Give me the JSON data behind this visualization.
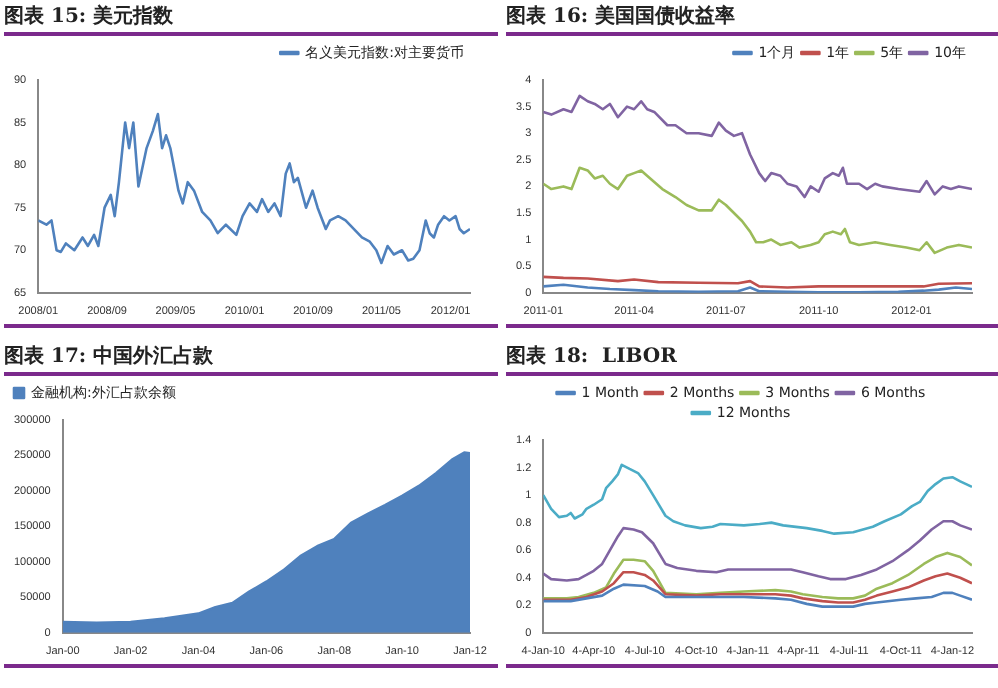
{
  "chart_data": [
    {
      "type": "line",
      "title": "图表 15: 美元指数",
      "legend": "top right",
      "marker": "none",
      "xlim": [
        "2008-01-01",
        "2012-03-10"
      ],
      "xticks": [
        {
          "value": "2008-01-01",
          "label": "2008/01"
        },
        {
          "value": "2008-09-01",
          "label": "2008/09"
        },
        {
          "value": "2009-05-01",
          "label": "2009/05"
        },
        {
          "value": "2010-01-01",
          "label": "2010/01"
        },
        {
          "value": "2010-09-01",
          "label": "2010/09"
        },
        {
          "value": "2011-05-01",
          "label": "2011/05"
        },
        {
          "value": "2012-01-01",
          "label": "2012/01"
        }
      ],
      "ylim": [
        65,
        90
      ],
      "yticks": [
        65,
        70,
        75,
        80,
        85,
        90
      ],
      "series": [
        {
          "name": "名义美元指数:对主要货币",
          "color": "#4f81bd",
          "x": [
            "2008-01-01",
            "2008-01-30",
            "2008-02-17",
            "2008-03-06",
            "2008-03-21",
            "2008-04-08",
            "2008-05-08",
            "2008-06-06",
            "2008-06-25",
            "2008-07-17",
            "2008-08-01",
            "2008-08-23",
            "2008-09-14",
            "2008-09-28",
            "2008-10-13",
            "2008-11-04",
            "2008-11-18",
            "2008-12-03",
            "2008-12-21",
            "2009-01-19",
            "2009-02-10",
            "2009-02-28",
            "2009-03-15",
            "2009-03-29",
            "2009-04-13",
            "2009-05-12",
            "2009-05-27",
            "2009-06-14",
            "2009-07-06",
            "2009-08-04",
            "2009-09-02",
            "2009-09-28",
            "2009-10-27",
            "2009-12-03",
            "2009-12-25",
            "2010-01-19",
            "2010-02-14",
            "2010-03-04",
            "2010-03-26",
            "2010-04-17",
            "2010-05-09",
            "2010-05-27",
            "2010-06-10",
            "2010-06-25",
            "2010-07-09",
            "2010-08-07",
            "2010-08-30",
            "2010-09-17",
            "2010-10-16",
            "2010-10-31",
            "2010-11-29",
            "2010-12-25",
            "2011-01-23",
            "2011-02-21",
            "2011-03-21",
            "2011-04-13",
            "2011-05-01",
            "2011-05-23",
            "2011-06-14",
            "2011-07-13",
            "2011-08-04",
            "2011-08-22",
            "2011-09-13",
            "2011-10-05",
            "2011-10-19",
            "2011-11-03",
            "2011-11-18",
            "2011-12-09",
            "2011-12-28",
            "2012-01-19",
            "2012-02-02",
            "2012-02-17",
            "2012-03-10"
          ],
          "values": [
            73.5,
            73,
            73.5,
            70,
            69.8,
            70.8,
            70,
            71.5,
            70.5,
            71.8,
            70.5,
            75,
            76.5,
            74,
            78,
            85,
            82,
            85,
            77.5,
            82,
            84,
            86,
            82,
            83.5,
            82,
            77,
            75.5,
            78,
            77,
            74.5,
            73.5,
            72,
            73,
            71.8,
            74,
            75.5,
            74.5,
            76,
            74.5,
            75.5,
            74,
            79,
            80.2,
            78,
            78.5,
            75,
            77,
            75,
            72.5,
            73.5,
            74,
            73.5,
            72.5,
            71.5,
            71,
            70,
            68.5,
            70.5,
            69.5,
            70,
            68.8,
            69,
            70,
            73.5,
            72,
            71.5,
            73,
            74,
            73.5,
            74,
            72.5,
            72,
            72.5
          ]
        }
      ]
    },
    {
      "type": "line",
      "title": "图表 16: 美国国债收益率",
      "legend": "top right",
      "marker": "none",
      "xlim": [
        "2011-01-01",
        "2012-03-01"
      ],
      "xticks": [
        {
          "value": "2011-01-01",
          "label": "2011-01"
        },
        {
          "value": "2011-04-01",
          "label": "2011-04"
        },
        {
          "value": "2011-07-01",
          "label": "2011-07"
        },
        {
          "value": "2011-10-01",
          "label": "2011-10"
        },
        {
          "value": "2012-01-01",
          "label": "2012-01"
        }
      ],
      "ylim": [
        0,
        4
      ],
      "yticks": [
        0,
        0.5,
        1,
        1.5,
        2,
        2.5,
        3,
        3.5,
        4
      ],
      "series": [
        {
          "name": "1个月",
          "color": "#4f81bd",
          "x": [
            "2011-01-01",
            "2011-01-21",
            "2011-02-14",
            "2011-03-08",
            "2011-04-01",
            "2011-04-25",
            "2011-06-04",
            "2011-07-13",
            "2011-07-25",
            "2011-08-03",
            "2011-08-31",
            "2011-10-01",
            "2011-11-10",
            "2011-12-19",
            "2012-01-13",
            "2012-01-28",
            "2012-02-14",
            "2012-03-01"
          ],
          "values": [
            0.12,
            0.15,
            0.1,
            0.07,
            0.05,
            0.03,
            0.02,
            0.03,
            0.1,
            0.03,
            0.02,
            0.01,
            0.01,
            0.02,
            0.04,
            0.06,
            0.1,
            0.07
          ]
        },
        {
          "name": "1年",
          "color": "#c0504d",
          "x": [
            "2011-01-01",
            "2011-01-21",
            "2011-02-14",
            "2011-03-16",
            "2011-04-01",
            "2011-04-25",
            "2011-06-04",
            "2011-07-13",
            "2011-07-25",
            "2011-08-03",
            "2011-08-31",
            "2011-10-01",
            "2011-11-10",
            "2011-12-19",
            "2012-01-13",
            "2012-01-28",
            "2012-03-01"
          ],
          "values": [
            0.3,
            0.28,
            0.27,
            0.22,
            0.25,
            0.2,
            0.19,
            0.18,
            0.22,
            0.12,
            0.1,
            0.12,
            0.12,
            0.12,
            0.12,
            0.17,
            0.18
          ]
        },
        {
          "name": "5年",
          "color": "#9bbb59",
          "x": [
            "2011-01-01",
            "2011-01-09",
            "2011-01-21",
            "2011-01-29",
            "2011-02-06",
            "2011-02-14",
            "2011-02-21",
            "2011-03-01",
            "2011-03-08",
            "2011-03-16",
            "2011-03-25",
            "2011-04-01",
            "2011-04-08",
            "2011-04-17",
            "2011-04-29",
            "2011-05-12",
            "2011-05-23",
            "2011-06-04",
            "2011-06-17",
            "2011-06-24",
            "2011-07-01",
            "2011-07-09",
            "2011-07-17",
            "2011-07-25",
            "2011-07-31",
            "2011-08-07",
            "2011-08-15",
            "2011-08-24",
            "2011-09-04",
            "2011-09-12",
            "2011-09-23",
            "2011-10-01",
            "2011-10-07",
            "2011-10-15",
            "2011-10-23",
            "2011-10-27",
            "2011-11-01",
            "2011-11-10",
            "2011-11-26",
            "2011-12-11",
            "2011-12-27",
            "2012-01-09",
            "2012-01-16",
            "2012-01-24",
            "2012-02-05",
            "2012-02-17",
            "2012-03-01"
          ],
          "values": [
            2.05,
            1.95,
            2.0,
            1.95,
            2.35,
            2.3,
            2.15,
            2.2,
            2.05,
            1.95,
            2.2,
            2.25,
            2.3,
            2.15,
            1.95,
            1.8,
            1.65,
            1.55,
            1.55,
            1.75,
            1.65,
            1.5,
            1.35,
            1.15,
            0.95,
            0.95,
            1.0,
            0.9,
            0.95,
            0.85,
            0.9,
            0.95,
            1.1,
            1.15,
            1.1,
            1.2,
            0.95,
            0.9,
            0.95,
            0.9,
            0.85,
            0.8,
            0.95,
            0.75,
            0.85,
            0.9,
            0.85
          ]
        },
        {
          "name": "10年",
          "color": "#8064a2",
          "x": [
            "2011-01-01",
            "2011-01-09",
            "2011-01-21",
            "2011-01-29",
            "2011-02-06",
            "2011-02-14",
            "2011-02-21",
            "2011-03-01",
            "2011-03-08",
            "2011-03-16",
            "2011-03-25",
            "2011-04-01",
            "2011-04-08",
            "2011-04-14",
            "2011-04-21",
            "2011-05-04",
            "2011-05-12",
            "2011-05-23",
            "2011-06-04",
            "2011-06-17",
            "2011-06-24",
            "2011-07-01",
            "2011-07-09",
            "2011-07-17",
            "2011-07-25",
            "2011-08-03",
            "2011-08-09",
            "2011-08-15",
            "2011-08-24",
            "2011-08-31",
            "2011-09-09",
            "2011-09-17",
            "2011-09-23",
            "2011-10-01",
            "2011-10-07",
            "2011-10-15",
            "2011-10-21",
            "2011-10-25",
            "2011-10-29",
            "2011-11-10",
            "2011-11-18",
            "2011-11-26",
            "2011-12-03",
            "2011-12-19",
            "2012-01-09",
            "2012-01-16",
            "2012-01-24",
            "2012-02-01",
            "2012-02-09",
            "2012-02-17",
            "2012-03-01"
          ],
          "values": [
            3.4,
            3.35,
            3.45,
            3.4,
            3.7,
            3.6,
            3.55,
            3.45,
            3.55,
            3.3,
            3.5,
            3.45,
            3.6,
            3.45,
            3.4,
            3.15,
            3.15,
            3.0,
            3.0,
            2.95,
            3.2,
            3.05,
            2.95,
            3.0,
            2.6,
            2.25,
            2.1,
            2.25,
            2.2,
            2.05,
            2.0,
            1.8,
            2.0,
            1.9,
            2.15,
            2.25,
            2.2,
            2.35,
            2.05,
            2.05,
            1.95,
            2.05,
            2.0,
            1.95,
            1.9,
            2.1,
            1.85,
            2.0,
            1.95,
            2.0,
            1.95
          ]
        }
      ]
    },
    {
      "type": "area",
      "title": "图表 17: 中国外汇占款",
      "legend": "top left",
      "marker": "none",
      "xlim": [
        "2000-01-01",
        "2012-01-01"
      ],
      "xticks": [
        {
          "value": "2000-01-01",
          "label": "Jan-00"
        },
        {
          "value": "2002-01-01",
          "label": "Jan-02"
        },
        {
          "value": "2004-01-01",
          "label": "Jan-04"
        },
        {
          "value": "2006-01-01",
          "label": "Jan-06"
        },
        {
          "value": "2008-01-01",
          "label": "Jan-08"
        },
        {
          "value": "2010-01-01",
          "label": "Jan-10"
        },
        {
          "value": "2012-01-01",
          "label": "Jan-12"
        }
      ],
      "ylim": [
        0,
        300000
      ],
      "yticks": [
        0,
        50000,
        100000,
        150000,
        200000,
        250000,
        300000
      ],
      "series": [
        {
          "name": "金融机构:外汇占款余额",
          "color": "#4f81bd",
          "x": [
            "2000-01-01",
            "2001-01-01",
            "2002-01-01",
            "2003-01-01",
            "2004-01-01",
            "2004-07-01",
            "2005-01-01",
            "2005-07-01",
            "2006-01-01",
            "2006-07-01",
            "2007-01-01",
            "2007-07-01",
            "2008-01-01",
            "2008-07-01",
            "2009-01-01",
            "2009-07-01",
            "2010-01-01",
            "2010-07-01",
            "2011-01-01",
            "2011-07-01",
            "2011-10-31",
            "2012-01-01"
          ],
          "values": [
            15000,
            14000,
            15000,
            20000,
            27000,
            36000,
            42000,
            58000,
            72000,
            88000,
            108000,
            122000,
            132000,
            155000,
            168000,
            180000,
            193000,
            207000,
            225000,
            245000,
            254000,
            253000
          ]
        }
      ]
    },
    {
      "type": "line",
      "title": "图表 18:  LIBOR",
      "legend": "top",
      "marker": "none",
      "xlim": [
        "2010-01-04",
        "2012-02-08"
      ],
      "xticks": [
        {
          "value": "2010-01-04",
          "label": "4-Jan-10"
        },
        {
          "value": "2010-04-04",
          "label": "4-Apr-10"
        },
        {
          "value": "2010-07-04",
          "label": "4-Jul-10"
        },
        {
          "value": "2010-10-04",
          "label": "4-Oct-10"
        },
        {
          "value": "2011-01-04",
          "label": "4-Jan-11"
        },
        {
          "value": "2011-04-04",
          "label": "4-Apr-11"
        },
        {
          "value": "2011-07-04",
          "label": "4-Jul-11"
        },
        {
          "value": "2011-10-04",
          "label": "4-Oct-11"
        },
        {
          "value": "2012-01-04",
          "label": "4-Jan-12"
        }
      ],
      "ylim": [
        0,
        1.4
      ],
      "yticks": [
        0,
        0.2,
        0.4,
        0.6,
        0.8,
        1,
        1.2,
        1.4
      ],
      "series": [
        {
          "name": "1 Month",
          "color": "#4f81bd",
          "x": [
            "2010-01-04",
            "2010-02-22",
            "2010-03-22",
            "2010-04-19",
            "2010-05-10",
            "2010-05-27",
            "2010-07-04",
            "2010-07-27",
            "2010-08-10",
            "2010-10-04",
            "2010-12-28",
            "2011-02-22",
            "2011-03-22",
            "2011-04-19",
            "2011-05-17",
            "2011-07-11",
            "2011-08-01",
            "2011-08-22",
            "2011-10-04",
            "2011-10-31",
            "2011-11-28",
            "2011-12-19",
            "2012-01-04",
            "2012-01-18",
            "2012-02-08"
          ],
          "values": [
            0.23,
            0.23,
            0.25,
            0.27,
            0.32,
            0.35,
            0.34,
            0.3,
            0.26,
            0.26,
            0.26,
            0.25,
            0.24,
            0.21,
            0.19,
            0.19,
            0.21,
            0.22,
            0.24,
            0.25,
            0.26,
            0.29,
            0.29,
            0.27,
            0.24
          ]
        },
        {
          "name": "2 Months",
          "color": "#c0504d",
          "x": [
            "2010-01-04",
            "2010-02-22",
            "2010-03-22",
            "2010-04-19",
            "2010-05-10",
            "2010-05-27",
            "2010-06-14",
            "2010-07-04",
            "2010-07-19",
            "2010-08-10",
            "2010-10-04",
            "2010-11-16",
            "2010-12-28",
            "2011-02-22",
            "2011-03-22",
            "2011-04-12",
            "2011-05-17",
            "2011-06-14",
            "2011-07-11",
            "2011-08-01",
            "2011-08-22",
            "2011-09-19",
            "2011-10-17",
            "2011-11-14",
            "2011-12-05",
            "2011-12-26",
            "2012-01-18",
            "2012-02-08"
          ],
          "values": [
            0.24,
            0.24,
            0.26,
            0.3,
            0.36,
            0.44,
            0.44,
            0.42,
            0.38,
            0.28,
            0.27,
            0.28,
            0.28,
            0.28,
            0.27,
            0.25,
            0.23,
            0.22,
            0.22,
            0.24,
            0.27,
            0.3,
            0.33,
            0.38,
            0.41,
            0.43,
            0.4,
            0.36
          ]
        },
        {
          "name": "3 Months",
          "color": "#9bbb59",
          "x": [
            "2010-01-04",
            "2010-02-15",
            "2010-03-08",
            "2010-04-04",
            "2010-04-26",
            "2010-05-10",
            "2010-05-27",
            "2010-06-14",
            "2010-07-04",
            "2010-07-19",
            "2010-08-10",
            "2010-10-04",
            "2010-11-16",
            "2010-12-28",
            "2011-02-22",
            "2011-03-22",
            "2011-04-12",
            "2011-05-17",
            "2011-06-14",
            "2011-07-11",
            "2011-08-01",
            "2011-08-22",
            "2011-09-19",
            "2011-10-17",
            "2011-11-14",
            "2011-12-05",
            "2011-12-26",
            "2012-01-18",
            "2012-02-08"
          ],
          "values": [
            0.25,
            0.25,
            0.26,
            0.29,
            0.33,
            0.43,
            0.53,
            0.53,
            0.52,
            0.45,
            0.29,
            0.28,
            0.29,
            0.3,
            0.31,
            0.3,
            0.28,
            0.26,
            0.25,
            0.25,
            0.27,
            0.32,
            0.36,
            0.42,
            0.5,
            0.55,
            0.58,
            0.55,
            0.49
          ]
        },
        {
          "name": "6 Months",
          "color": "#8064a2",
          "x": [
            "2010-01-04",
            "2010-01-18",
            "2010-02-15",
            "2010-03-08",
            "2010-03-22",
            "2010-04-04",
            "2010-04-19",
            "2010-05-03",
            "2010-05-17",
            "2010-05-27",
            "2010-06-14",
            "2010-06-29",
            "2010-07-19",
            "2010-08-10",
            "2010-08-31",
            "2010-10-04",
            "2010-11-09",
            "2010-11-30",
            "2011-01-25",
            "2011-02-22",
            "2011-03-22",
            "2011-04-12",
            "2011-05-10",
            "2011-05-31",
            "2011-06-28",
            "2011-07-25",
            "2011-08-22",
            "2011-09-19",
            "2011-10-17",
            "2011-11-07",
            "2011-11-28",
            "2011-12-19",
            "2012-01-04",
            "2012-01-18",
            "2012-02-08"
          ],
          "values": [
            0.43,
            0.39,
            0.38,
            0.39,
            0.42,
            0.45,
            0.5,
            0.6,
            0.7,
            0.76,
            0.75,
            0.73,
            0.65,
            0.5,
            0.47,
            0.45,
            0.44,
            0.46,
            0.46,
            0.46,
            0.46,
            0.44,
            0.41,
            0.39,
            0.39,
            0.42,
            0.46,
            0.52,
            0.6,
            0.67,
            0.75,
            0.81,
            0.81,
            0.78,
            0.75
          ]
        },
        {
          "name": "12 Months",
          "color": "#4bacc6",
          "x": [
            "2010-01-04",
            "2010-01-18",
            "2010-02-01",
            "2010-02-15",
            "2010-02-22",
            "2010-03-01",
            "2010-03-15",
            "2010-03-22",
            "2010-04-04",
            "2010-04-19",
            "2010-04-26",
            "2010-05-07",
            "2010-05-17",
            "2010-05-24",
            "2010-06-07",
            "2010-06-22",
            "2010-07-04",
            "2010-07-19",
            "2010-08-10",
            "2010-08-24",
            "2010-09-14",
            "2010-10-12",
            "2010-11-02",
            "2010-11-16",
            "2010-12-28",
            "2011-01-25",
            "2011-02-15",
            "2011-03-08",
            "2011-04-19",
            "2011-05-17",
            "2011-06-07",
            "2011-07-11",
            "2011-08-15",
            "2011-09-05",
            "2011-10-04",
            "2011-10-24",
            "2011-11-07",
            "2011-11-21",
            "2011-12-05",
            "2011-12-19",
            "2012-01-04",
            "2012-01-18",
            "2012-02-08"
          ],
          "values": [
            1.0,
            0.9,
            0.84,
            0.85,
            0.87,
            0.83,
            0.86,
            0.9,
            0.93,
            0.97,
            1.05,
            1.1,
            1.15,
            1.22,
            1.19,
            1.16,
            1.1,
            1.0,
            0.85,
            0.81,
            0.78,
            0.76,
            0.77,
            0.79,
            0.78,
            0.79,
            0.8,
            0.78,
            0.76,
            0.74,
            0.72,
            0.73,
            0.77,
            0.81,
            0.86,
            0.92,
            0.95,
            1.03,
            1.08,
            1.12,
            1.13,
            1.1,
            1.06
          ]
        }
      ]
    }
  ]
}
